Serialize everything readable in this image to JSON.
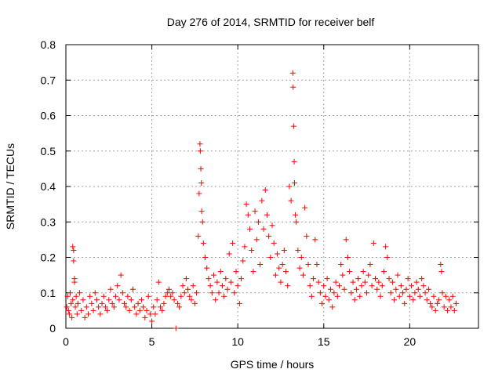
{
  "chart_data": {
    "type": "scatter",
    "title": "Day 276 of 2014, SRMTID for receiver belf",
    "xlabel": "GPS time / hours",
    "ylabel": "SRMTID / TECUs",
    "xlim": [
      0,
      24
    ],
    "ylim": [
      0,
      0.8
    ],
    "x_ticks": [
      0,
      5,
      10,
      15,
      20
    ],
    "x_tick_labels": [
      "0",
      "5",
      "10",
      "15",
      "20"
    ],
    "y_ticks": [
      0,
      0.1,
      0.2,
      0.3,
      0.4,
      0.5,
      0.6,
      0.7,
      0.8
    ],
    "y_tick_labels": [
      "0",
      "0.1",
      "0.2",
      "0.3",
      "0.4",
      "0.5",
      "0.6",
      "0.7",
      "0.8"
    ],
    "grid": true,
    "marker": "plus",
    "color": "#ff0000",
    "series": [
      {
        "name": "SRMTID",
        "points": [
          [
            0.05,
            0.06
          ],
          [
            0.1,
            0.09
          ],
          [
            0.15,
            0.05
          ],
          [
            0.2,
            0.04
          ],
          [
            0.25,
            0.1
          ],
          [
            0.3,
            0.07
          ],
          [
            0.35,
            0.03
          ],
          [
            0.4,
            0.08
          ],
          [
            0.4,
            0.23
          ],
          [
            0.45,
            0.22
          ],
          [
            0.45,
            0.19
          ],
          [
            0.5,
            0.14
          ],
          [
            0.5,
            0.13
          ],
          [
            0.55,
            0.06
          ],
          [
            0.6,
            0.09
          ],
          [
            0.65,
            0.04
          ],
          [
            0.7,
            0.07
          ],
          [
            0.8,
            0.1
          ],
          [
            0.9,
            0.05
          ],
          [
            1.0,
            0.08
          ],
          [
            1.1,
            0.03
          ],
          [
            1.2,
            0.06
          ],
          [
            1.3,
            0.04
          ],
          [
            1.4,
            0.09
          ],
          [
            1.5,
            0.07
          ],
          [
            1.6,
            0.05
          ],
          [
            1.7,
            0.1
          ],
          [
            1.8,
            0.08
          ],
          [
            1.9,
            0.06
          ],
          [
            2.0,
            0.04
          ],
          [
            2.1,
            0.07
          ],
          [
            2.2,
            0.09
          ],
          [
            2.3,
            0.06
          ],
          [
            2.4,
            0.05
          ],
          [
            2.5,
            0.08
          ],
          [
            2.6,
            0.11
          ],
          [
            2.7,
            0.07
          ],
          [
            2.8,
            0.06
          ],
          [
            2.9,
            0.09
          ],
          [
            3.0,
            0.12
          ],
          [
            3.1,
            0.08
          ],
          [
            3.2,
            0.15
          ],
          [
            3.3,
            0.1
          ],
          [
            3.4,
            0.07
          ],
          [
            3.5,
            0.06
          ],
          [
            3.6,
            0.09
          ],
          [
            3.7,
            0.05
          ],
          [
            3.8,
            0.08
          ],
          [
            3.9,
            0.11
          ],
          [
            4.0,
            0.06
          ],
          [
            4.1,
            0.04
          ],
          [
            4.2,
            0.07
          ],
          [
            4.3,
            0.05
          ],
          [
            4.4,
            0.08
          ],
          [
            4.5,
            0.06
          ],
          [
            4.6,
            0.03
          ],
          [
            4.7,
            0.05
          ],
          [
            4.8,
            0.09
          ],
          [
            4.9,
            0.04
          ],
          [
            5.0,
            0.02
          ],
          [
            5.1,
            0.06
          ],
          [
            5.2,
            0.04
          ],
          [
            5.3,
            0.08
          ],
          [
            5.4,
            0.13
          ],
          [
            5.5,
            0.06
          ],
          [
            5.6,
            0.05
          ],
          [
            5.7,
            0.07
          ],
          [
            5.8,
            0.09
          ],
          [
            5.9,
            0.1
          ],
          [
            6.0,
            0.11
          ],
          [
            6.1,
            0.09
          ],
          [
            6.2,
            0.1
          ],
          [
            6.3,
            0.08
          ],
          [
            6.4,
            0.0
          ],
          [
            6.5,
            0.07
          ],
          [
            6.6,
            0.06
          ],
          [
            6.7,
            0.09
          ],
          [
            6.8,
            0.12
          ],
          [
            6.9,
            0.1
          ],
          [
            7.0,
            0.14
          ],
          [
            7.1,
            0.11
          ],
          [
            7.2,
            0.09
          ],
          [
            7.3,
            0.08
          ],
          [
            7.4,
            0.12
          ],
          [
            7.5,
            0.07
          ],
          [
            7.6,
            0.1
          ],
          [
            7.7,
            0.26
          ],
          [
            7.75,
            0.38
          ],
          [
            7.8,
            0.52
          ],
          [
            7.82,
            0.5
          ],
          [
            7.85,
            0.45
          ],
          [
            7.88,
            0.41
          ],
          [
            7.9,
            0.33
          ],
          [
            7.95,
            0.3
          ],
          [
            8.0,
            0.24
          ],
          [
            8.1,
            0.2
          ],
          [
            8.2,
            0.17
          ],
          [
            8.3,
            0.14
          ],
          [
            8.4,
            0.12
          ],
          [
            8.5,
            0.1
          ],
          [
            8.6,
            0.15
          ],
          [
            8.7,
            0.08
          ],
          [
            8.8,
            0.13
          ],
          [
            8.9,
            0.1
          ],
          [
            9.0,
            0.16
          ],
          [
            9.1,
            0.12
          ],
          [
            9.2,
            0.09
          ],
          [
            9.3,
            0.14
          ],
          [
            9.4,
            0.11
          ],
          [
            9.5,
            0.21
          ],
          [
            9.6,
            0.13
          ],
          [
            9.7,
            0.24
          ],
          [
            9.8,
            0.1
          ],
          [
            9.9,
            0.16
          ],
          [
            10.0,
            0.12
          ],
          [
            10.1,
            0.07
          ],
          [
            10.2,
            0.14
          ],
          [
            10.3,
            0.19
          ],
          [
            10.4,
            0.23
          ],
          [
            10.5,
            0.35
          ],
          [
            10.6,
            0.32
          ],
          [
            10.7,
            0.28
          ],
          [
            10.8,
            0.22
          ],
          [
            10.9,
            0.16
          ],
          [
            11.0,
            0.33
          ],
          [
            11.1,
            0.25
          ],
          [
            11.2,
            0.3
          ],
          [
            11.3,
            0.18
          ],
          [
            11.4,
            0.36
          ],
          [
            11.5,
            0.28
          ],
          [
            11.6,
            0.39
          ],
          [
            11.7,
            0.32
          ],
          [
            11.8,
            0.26
          ],
          [
            11.9,
            0.2
          ],
          [
            12.0,
            0.29
          ],
          [
            12.1,
            0.24
          ],
          [
            12.2,
            0.15
          ],
          [
            12.3,
            0.21
          ],
          [
            12.4,
            0.17
          ],
          [
            12.5,
            0.13
          ],
          [
            12.6,
            0.18
          ],
          [
            12.7,
            0.22
          ],
          [
            12.8,
            0.16
          ],
          [
            12.9,
            0.12
          ],
          [
            13.0,
            0.4
          ],
          [
            13.1,
            0.36
          ],
          [
            13.2,
            0.72
          ],
          [
            13.22,
            0.68
          ],
          [
            13.25,
            0.57
          ],
          [
            13.28,
            0.47
          ],
          [
            13.3,
            0.41
          ],
          [
            13.35,
            0.32
          ],
          [
            13.4,
            0.3
          ],
          [
            13.5,
            0.22
          ],
          [
            13.6,
            0.17
          ],
          [
            13.7,
            0.2
          ],
          [
            13.8,
            0.15
          ],
          [
            13.9,
            0.34
          ],
          [
            14.0,
            0.26
          ],
          [
            14.1,
            0.18
          ],
          [
            14.2,
            0.12
          ],
          [
            14.3,
            0.09
          ],
          [
            14.4,
            0.14
          ],
          [
            14.5,
            0.25
          ],
          [
            14.6,
            0.18
          ],
          [
            14.7,
            0.13
          ],
          [
            14.8,
            0.1
          ],
          [
            14.9,
            0.07
          ],
          [
            15.0,
            0.12
          ],
          [
            15.1,
            0.09
          ],
          [
            15.2,
            0.14
          ],
          [
            15.3,
            0.08
          ],
          [
            15.4,
            0.11
          ],
          [
            15.5,
            0.06
          ],
          [
            15.6,
            0.1
          ],
          [
            15.7,
            0.13
          ],
          [
            15.8,
            0.09
          ],
          [
            15.9,
            0.12
          ],
          [
            16.0,
            0.18
          ],
          [
            16.1,
            0.15
          ],
          [
            16.2,
            0.11
          ],
          [
            16.3,
            0.25
          ],
          [
            16.4,
            0.2
          ],
          [
            16.5,
            0.16
          ],
          [
            16.6,
            0.1
          ],
          [
            16.7,
            0.13
          ],
          [
            16.8,
            0.08
          ],
          [
            16.9,
            0.11
          ],
          [
            17.0,
            0.14
          ],
          [
            17.1,
            0.09
          ],
          [
            17.2,
            0.12
          ],
          [
            17.3,
            0.16
          ],
          [
            17.4,
            0.13
          ],
          [
            17.5,
            0.1
          ],
          [
            17.6,
            0.15
          ],
          [
            17.7,
            0.18
          ],
          [
            17.8,
            0.12
          ],
          [
            17.9,
            0.24
          ],
          [
            18.0,
            0.14
          ],
          [
            18.1,
            0.11
          ],
          [
            18.2,
            0.13
          ],
          [
            18.3,
            0.09
          ],
          [
            18.4,
            0.12
          ],
          [
            18.5,
            0.16
          ],
          [
            18.6,
            0.23
          ],
          [
            18.7,
            0.2
          ],
          [
            18.8,
            0.14
          ],
          [
            18.9,
            0.1
          ],
          [
            19.0,
            0.13
          ],
          [
            19.1,
            0.08
          ],
          [
            19.2,
            0.11
          ],
          [
            19.3,
            0.15
          ],
          [
            19.4,
            0.09
          ],
          [
            19.5,
            0.12
          ],
          [
            19.6,
            0.1
          ],
          [
            19.7,
            0.07
          ],
          [
            19.8,
            0.11
          ],
          [
            19.9,
            0.14
          ],
          [
            20.0,
            0.09
          ],
          [
            20.1,
            0.12
          ],
          [
            20.2,
            0.08
          ],
          [
            20.3,
            0.1
          ],
          [
            20.4,
            0.13
          ],
          [
            20.5,
            0.11
          ],
          [
            20.6,
            0.09
          ],
          [
            20.7,
            0.14
          ],
          [
            20.8,
            0.12
          ],
          [
            20.9,
            0.1
          ],
          [
            21.0,
            0.08
          ],
          [
            21.1,
            0.11
          ],
          [
            21.2,
            0.07
          ],
          [
            21.3,
            0.06
          ],
          [
            21.4,
            0.09
          ],
          [
            21.5,
            0.05
          ],
          [
            21.6,
            0.07
          ],
          [
            21.7,
            0.08
          ],
          [
            21.8,
            0.18
          ],
          [
            21.85,
            0.16
          ],
          [
            21.9,
            0.1
          ],
          [
            22.0,
            0.06
          ],
          [
            22.1,
            0.09
          ],
          [
            22.2,
            0.05
          ],
          [
            22.3,
            0.08
          ],
          [
            22.4,
            0.06
          ],
          [
            22.5,
            0.09
          ],
          [
            22.6,
            0.05
          ],
          [
            22.7,
            0.07
          ]
        ]
      }
    ]
  }
}
